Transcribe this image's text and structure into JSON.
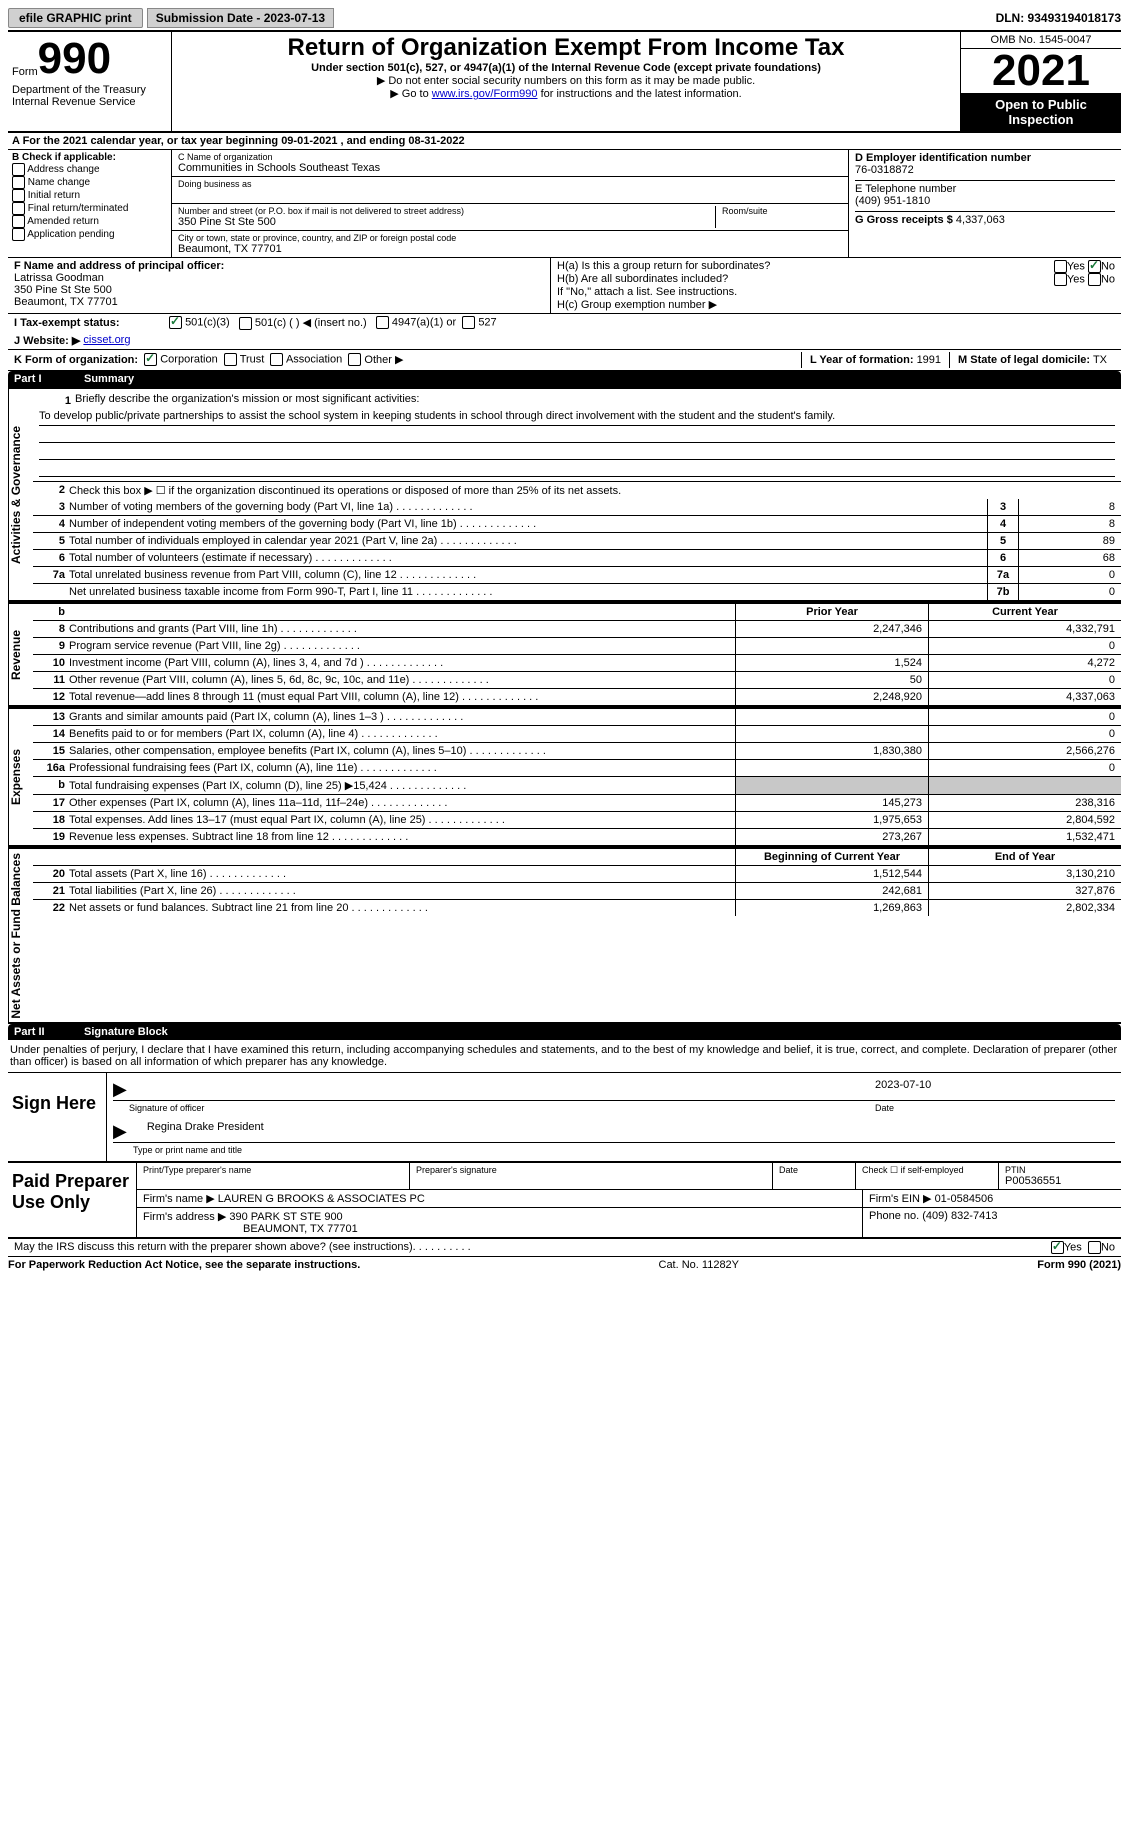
{
  "topbar": {
    "efile": "efile GRAPHIC print",
    "submission_label": "Submission Date - 2023-07-13",
    "dln": "DLN: 93493194018173"
  },
  "header": {
    "form_word": "Form",
    "form_number": "990",
    "dept1": "Department of the Treasury",
    "dept2": "Internal Revenue Service",
    "title": "Return of Organization Exempt From Income Tax",
    "subtitle": "Under section 501(c), 527, or 4947(a)(1) of the Internal Revenue Code (except private foundations)",
    "instr1": "▶ Do not enter social security numbers on this form as it may be made public.",
    "instr2_pre": "▶ Go to ",
    "instr2_link": "www.irs.gov/Form990",
    "instr2_post": " for instructions and the latest information.",
    "omb": "OMB No. 1545-0047",
    "year": "2021",
    "open_public": "Open to Public Inspection"
  },
  "row_a": "A For the 2021 calendar year, or tax year beginning 09-01-2021   , and ending 08-31-2022",
  "box_b": {
    "label": "B Check if applicable:",
    "opts": [
      "Address change",
      "Name change",
      "Initial return",
      "Final return/terminated",
      "Amended return",
      "Application pending"
    ]
  },
  "box_c": {
    "name_lbl": "C Name of organization",
    "name": "Communities in Schools Southeast Texas",
    "dba_lbl": "Doing business as",
    "addr_lbl": "Number and street (or P.O. box if mail is not delivered to street address)",
    "room_lbl": "Room/suite",
    "addr": "350 Pine St Ste 500",
    "city_lbl": "City or town, state or province, country, and ZIP or foreign postal code",
    "city": "Beaumont, TX  77701"
  },
  "box_d": {
    "ein_lbl": "D Employer identification number",
    "ein": "76-0318872",
    "tel_lbl": "E Telephone number",
    "tel": "(409) 951-1810",
    "gross_lbl": "G Gross receipts $",
    "gross": "4,337,063"
  },
  "box_f": {
    "lbl": "F Name and address of principal officer:",
    "name": "Latrissa Goodman",
    "addr1": "350 Pine St Ste 500",
    "addr2": "Beaumont, TX  77701"
  },
  "box_h": {
    "a_lbl": "H(a)  Is this a group return for subordinates?",
    "b_lbl": "H(b)  Are all subordinates included?",
    "b_note": "If \"No,\" attach a list. See instructions.",
    "c_lbl": "H(c)  Group exemption number ▶",
    "yes": "Yes",
    "no": "No"
  },
  "row_i": {
    "lbl": "I  Tax-exempt status:",
    "opts": [
      "501(c)(3)",
      "501(c) (  ) ◀ (insert no.)",
      "4947(a)(1) or",
      "527"
    ]
  },
  "row_j": {
    "lbl": "J  Website: ▶",
    "val": "cisset.org"
  },
  "row_k": {
    "lbl": "K Form of organization:",
    "opts": [
      "Corporation",
      "Trust",
      "Association",
      "Other ▶"
    ],
    "l_lbl": "L Year of formation:",
    "l_val": "1991",
    "m_lbl": "M State of legal domicile:",
    "m_val": "TX"
  },
  "part1": {
    "part": "Part I",
    "title": "Summary",
    "vtab_act": "Activities & Governance",
    "vtab_rev": "Revenue",
    "vtab_exp": "Expenses",
    "vtab_net": "Net Assets or Fund Balances",
    "line1_lbl": "Briefly describe the organization's mission or most significant activities:",
    "line1_text": "To develop public/private partnerships to assist the school system in keeping students in school through direct involvement with the student and the student's family.",
    "line2_lbl": "Check this box ▶ ☐  if the organization discontinued its operations or disposed of more than 25% of its net assets.",
    "rows_gov": [
      {
        "n": "3",
        "label": "Number of voting members of the governing body (Part VI, line 1a)",
        "box": "3",
        "val": "8"
      },
      {
        "n": "4",
        "label": "Number of independent voting members of the governing body (Part VI, line 1b)",
        "box": "4",
        "val": "8"
      },
      {
        "n": "5",
        "label": "Total number of individuals employed in calendar year 2021 (Part V, line 2a)",
        "box": "5",
        "val": "89"
      },
      {
        "n": "6",
        "label": "Total number of volunteers (estimate if necessary)",
        "box": "6",
        "val": "68"
      },
      {
        "n": "7a",
        "label": "Total unrelated business revenue from Part VIII, column (C), line 12",
        "box": "7a",
        "val": "0"
      },
      {
        "n": "",
        "label": "Net unrelated business taxable income from Form 990-T, Part I, line 11",
        "box": "7b",
        "val": "0"
      }
    ],
    "col_prior_hdr": "Prior Year",
    "col_current_hdr": "Current Year",
    "rows_rev": [
      {
        "n": "8",
        "label": "Contributions and grants (Part VIII, line 1h)",
        "prior": "2,247,346",
        "cur": "4,332,791"
      },
      {
        "n": "9",
        "label": "Program service revenue (Part VIII, line 2g)",
        "prior": "",
        "cur": "0"
      },
      {
        "n": "10",
        "label": "Investment income (Part VIII, column (A), lines 3, 4, and 7d )",
        "prior": "1,524",
        "cur": "4,272"
      },
      {
        "n": "11",
        "label": "Other revenue (Part VIII, column (A), lines 5, 6d, 8c, 9c, 10c, and 11e)",
        "prior": "50",
        "cur": "0"
      },
      {
        "n": "12",
        "label": "Total revenue—add lines 8 through 11 (must equal Part VIII, column (A), line 12)",
        "prior": "2,248,920",
        "cur": "4,337,063"
      }
    ],
    "rows_exp": [
      {
        "n": "13",
        "label": "Grants and similar amounts paid (Part IX, column (A), lines 1–3 )",
        "prior": "",
        "cur": "0"
      },
      {
        "n": "14",
        "label": "Benefits paid to or for members (Part IX, column (A), line 4)",
        "prior": "",
        "cur": "0"
      },
      {
        "n": "15",
        "label": "Salaries, other compensation, employee benefits (Part IX, column (A), lines 5–10)",
        "prior": "1,830,380",
        "cur": "2,566,276"
      },
      {
        "n": "16a",
        "label": "Professional fundraising fees (Part IX, column (A), line 11e)",
        "prior": "",
        "cur": "0"
      },
      {
        "n": "b",
        "label": "Total fundraising expenses (Part IX, column (D), line 25) ▶15,424",
        "prior": "SHADED",
        "cur": "SHADED"
      },
      {
        "n": "17",
        "label": "Other expenses (Part IX, column (A), lines 11a–11d, 11f–24e)",
        "prior": "145,273",
        "cur": "238,316"
      },
      {
        "n": "18",
        "label": "Total expenses. Add lines 13–17 (must equal Part IX, column (A), line 25)",
        "prior": "1,975,653",
        "cur": "2,804,592"
      },
      {
        "n": "19",
        "label": "Revenue less expenses. Subtract line 18 from line 12",
        "prior": "273,267",
        "cur": "1,532,471"
      }
    ],
    "col_begin_hdr": "Beginning of Current Year",
    "col_end_hdr": "End of Year",
    "rows_net": [
      {
        "n": "20",
        "label": "Total assets (Part X, line 16)",
        "prior": "1,512,544",
        "cur": "3,130,210"
      },
      {
        "n": "21",
        "label": "Total liabilities (Part X, line 26)",
        "prior": "242,681",
        "cur": "327,876"
      },
      {
        "n": "22",
        "label": "Net assets or fund balances. Subtract line 21 from line 20",
        "prior": "1,269,863",
        "cur": "2,802,334"
      }
    ]
  },
  "part2": {
    "part": "Part II",
    "title": "Signature Block",
    "intro": "Under penalties of perjury, I declare that I have examined this return, including accompanying schedules and statements, and to the best of my knowledge and belief, it is true, correct, and complete. Declaration of preparer (other than officer) is based on all information of which preparer has any knowledge.",
    "sign_here": "Sign Here",
    "sig_officer_lbl": "Signature of officer",
    "sig_date": "2023-07-10",
    "sig_date_lbl": "Date",
    "sig_name": "Regina Drake  President",
    "sig_name_lbl": "Type or print name and title",
    "paid_lbl": "Paid Preparer Use Only",
    "prep_name_lbl": "Print/Type preparer's name",
    "prep_sig_lbl": "Preparer's signature",
    "prep_date_lbl": "Date",
    "prep_self_lbl": "Check ☐ if self-employed",
    "ptin_lbl": "PTIN",
    "ptin": "P00536551",
    "firm_name_lbl": "Firm's name    ▶",
    "firm_name": "LAUREN G BROOKS & ASSOCIATES PC",
    "firm_ein_lbl": "Firm's EIN ▶",
    "firm_ein": "01-0584506",
    "firm_addr_lbl": "Firm's address ▶",
    "firm_addr1": "390 PARK ST STE 900",
    "firm_addr2": "BEAUMONT, TX  77701",
    "firm_phone_lbl": "Phone no.",
    "firm_phone": "(409) 832-7413",
    "discuss": "May the IRS discuss this return with the preparer shown above? (see instructions)",
    "yes": "Yes",
    "no": "No"
  },
  "footer": {
    "left": "For Paperwork Reduction Act Notice, see the separate instructions.",
    "mid": "Cat. No. 11282Y",
    "right": "Form 990 (2021)"
  }
}
